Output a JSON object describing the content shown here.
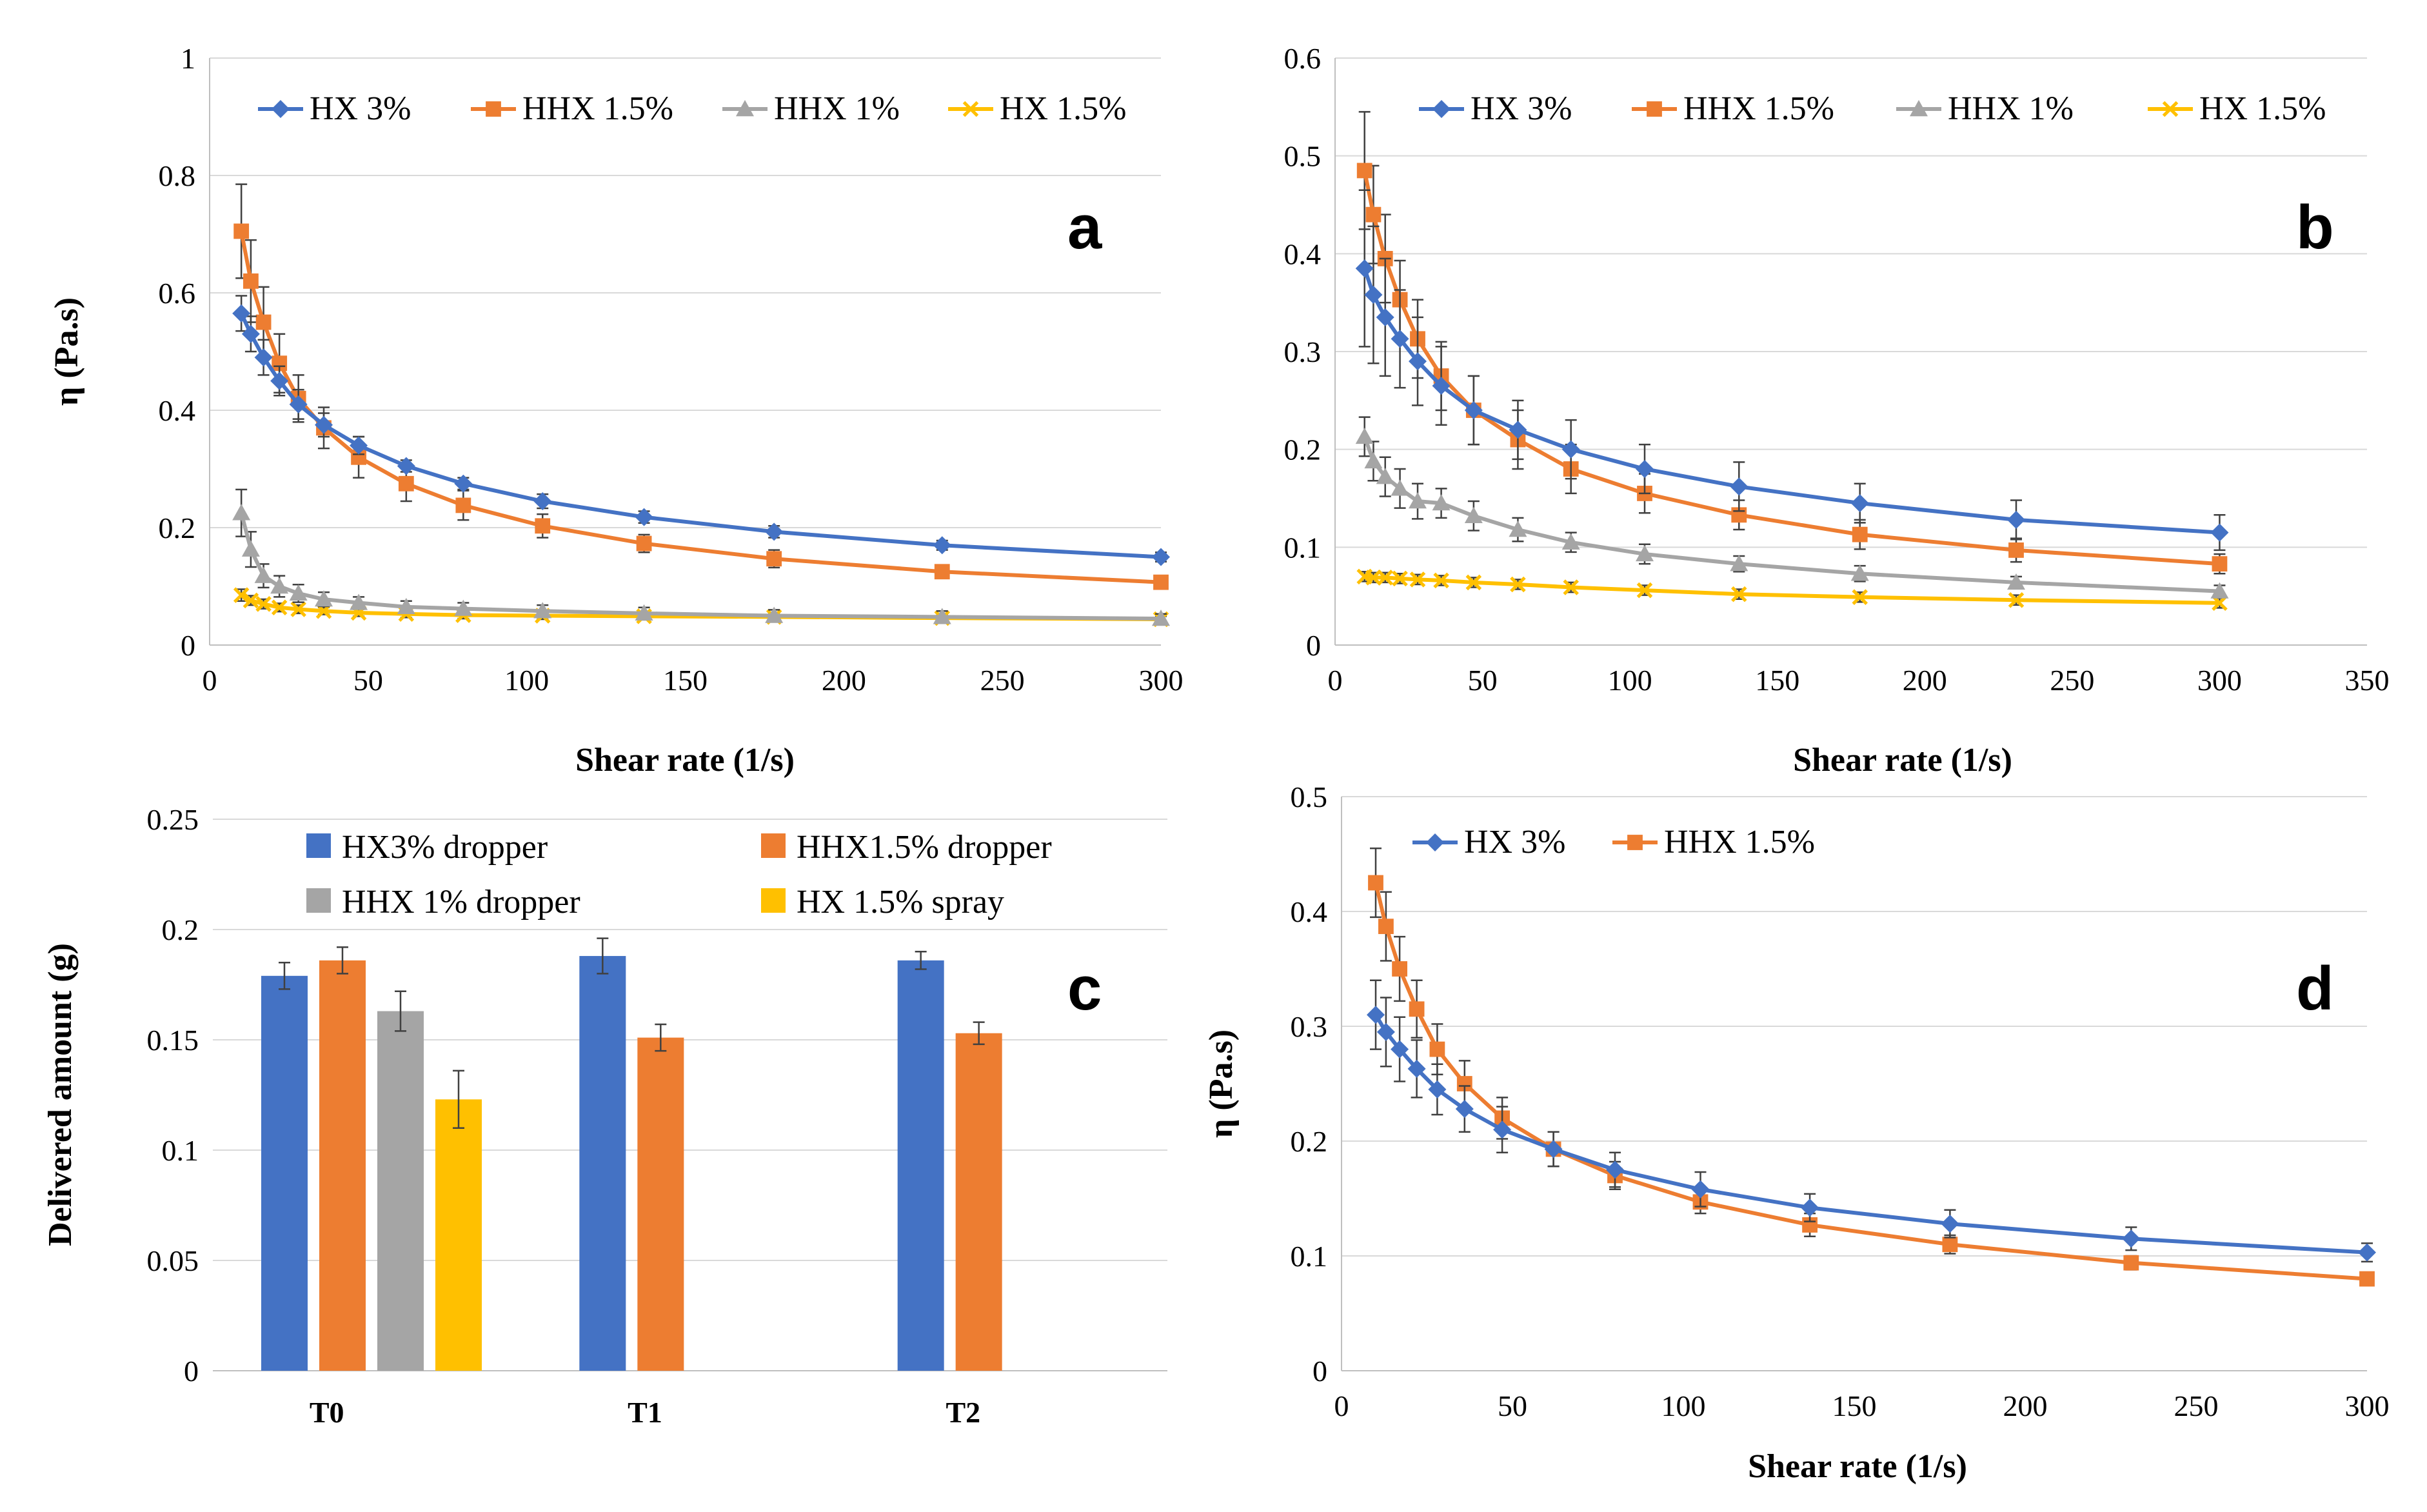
{
  "chart_data": [
    {
      "panel": "a",
      "type": "line",
      "xlabel": "Shear rate (1/s)",
      "ylabel": "η (Pa.s)",
      "xlim": [
        0,
        300
      ],
      "ylim": [
        0,
        1
      ],
      "xticks": [
        "0",
        "50",
        "100",
        "150",
        "200",
        "250",
        "300"
      ],
      "yticks": [
        "0",
        "0.2",
        "0.4",
        "0.6",
        "0.8",
        "1"
      ],
      "x": [
        10,
        13,
        17,
        22,
        28,
        36,
        47,
        62,
        80,
        105,
        137,
        178,
        231,
        300
      ],
      "series": [
        {
          "name": "HX 3%",
          "color": "#4472c4",
          "marker": "diamond",
          "values": [
            0.565,
            0.53,
            0.49,
            0.45,
            0.41,
            0.375,
            0.34,
            0.305,
            0.275,
            0.245,
            0.218,
            0.193,
            0.17,
            0.15
          ],
          "errors": [
            0.03,
            0.03,
            0.03,
            0.025,
            0.025,
            0.02,
            0.015,
            0.01,
            0.01,
            0.012,
            0.01,
            0.01,
            0.008,
            0.008
          ]
        },
        {
          "name": "HHX 1.5%",
          "color": "#ed7d31",
          "marker": "square",
          "values": [
            0.705,
            0.62,
            0.55,
            0.48,
            0.42,
            0.37,
            0.32,
            0.275,
            0.238,
            0.203,
            0.173,
            0.147,
            0.125,
            0.107
          ],
          "errors": [
            0.08,
            0.07,
            0.06,
            0.05,
            0.04,
            0.035,
            0.035,
            0.03,
            0.025,
            0.02,
            0.015,
            0.015,
            0.01,
            0.008
          ]
        },
        {
          "name": "HHX 1%",
          "color": "#a5a5a5",
          "marker": "triangle",
          "values": [
            0.225,
            0.163,
            0.118,
            0.1,
            0.088,
            0.078,
            0.072,
            0.065,
            0.062,
            0.058,
            0.054,
            0.05,
            0.048,
            0.045
          ],
          "errors": [
            0.04,
            0.03,
            0.02,
            0.018,
            0.015,
            0.012,
            0.01,
            0.01,
            0.01,
            0.01,
            0.01,
            0.01,
            0.01,
            0.008
          ]
        },
        {
          "name": "HX 1.5%",
          "color": "#ffc000",
          "marker": "x",
          "values": [
            0.085,
            0.076,
            0.07,
            0.064,
            0.061,
            0.058,
            0.055,
            0.053,
            0.051,
            0.05,
            0.049,
            0.048,
            0.046,
            0.044
          ],
          "errors": [
            0.01,
            0.008,
            0.008,
            0.007,
            0.007,
            0.006,
            0.006,
            0.006,
            0.006,
            0.006,
            0.006,
            0.006,
            0.005,
            0.005
          ]
        }
      ],
      "legend": [
        "HX 3%",
        "HHX 1.5%",
        "HHX 1%",
        "HX 1.5%"
      ]
    },
    {
      "panel": "b",
      "type": "line",
      "xlabel": "Shear rate (1/s)",
      "ylabel": "",
      "xlim": [
        0,
        350
      ],
      "ylim": [
        0,
        0.6
      ],
      "xticks": [
        "0",
        "50",
        "100",
        "150",
        "200",
        "250",
        "300",
        "350"
      ],
      "yticks": [
        "0",
        "0.1",
        "0.2",
        "0.3",
        "0.4",
        "0.5",
        "0.6"
      ],
      "x": [
        10,
        13,
        17,
        22,
        28,
        36,
        47,
        62,
        80,
        105,
        137,
        178,
        231,
        300
      ],
      "series": [
        {
          "name": "HX 3%",
          "color": "#4472c4",
          "marker": "diamond",
          "values": [
            0.385,
            0.358,
            0.335,
            0.313,
            0.29,
            0.265,
            0.24,
            0.22,
            0.2,
            0.18,
            0.162,
            0.145,
            0.128,
            0.115
          ],
          "errors": [
            0.08,
            0.07,
            0.06,
            0.05,
            0.045,
            0.04,
            0.035,
            0.03,
            0.03,
            0.025,
            0.025,
            0.02,
            0.02,
            0.018
          ]
        },
        {
          "name": "HHX 1.5%",
          "color": "#ed7d31",
          "marker": "square",
          "values": [
            0.485,
            0.44,
            0.395,
            0.353,
            0.313,
            0.275,
            0.24,
            0.21,
            0.18,
            0.155,
            0.133,
            0.113,
            0.097,
            0.083
          ],
          "errors": [
            0.06,
            0.05,
            0.045,
            0.04,
            0.04,
            0.035,
            0.035,
            0.03,
            0.025,
            0.02,
            0.015,
            0.015,
            0.012,
            0.01
          ]
        },
        {
          "name": "HHX 1%",
          "color": "#a5a5a5",
          "marker": "triangle",
          "values": [
            0.213,
            0.188,
            0.172,
            0.16,
            0.147,
            0.145,
            0.132,
            0.118,
            0.105,
            0.093,
            0.083,
            0.073,
            0.064,
            0.055
          ],
          "errors": [
            0.02,
            0.02,
            0.02,
            0.02,
            0.018,
            0.015,
            0.015,
            0.012,
            0.01,
            0.01,
            0.008,
            0.008,
            0.006,
            0.006
          ]
        },
        {
          "name": "HX 1.5%",
          "color": "#ffc000",
          "marker": "x",
          "values": [
            0.07,
            0.069,
            0.069,
            0.068,
            0.067,
            0.066,
            0.064,
            0.062,
            0.059,
            0.056,
            0.052,
            0.049,
            0.046,
            0.043
          ],
          "errors": [
            0.005,
            0.005,
            0.005,
            0.005,
            0.005,
            0.005,
            0.005,
            0.005,
            0.005,
            0.005,
            0.005,
            0.005,
            0.005,
            0.005
          ]
        }
      ],
      "legend": [
        "HX 3%",
        "HHX 1.5%",
        "HHX 1%",
        "HX 1.5%"
      ]
    },
    {
      "panel": "c",
      "type": "bar",
      "xlabel": "",
      "ylabel": "Delivered amount (g)",
      "ylim": [
        0,
        0.25
      ],
      "yticks": [
        "0",
        "0.05",
        "0.1",
        "0.15",
        "0.2",
        "0.25"
      ],
      "categories": [
        "T0",
        "T1",
        "T2"
      ],
      "series": [
        {
          "name": "HX3% dropper",
          "color": "#4472c4",
          "values": [
            0.179,
            0.188,
            0.186
          ],
          "errors": [
            0.006,
            0.008,
            0.004
          ]
        },
        {
          "name": "HHX1.5% dropper",
          "color": "#ed7d31",
          "values": [
            0.186,
            0.151,
            0.153
          ],
          "errors": [
            0.006,
            0.006,
            0.005
          ]
        },
        {
          "name": "HHX 1% dropper",
          "color": "#a5a5a5",
          "values": [
            0.163,
            null,
            null
          ],
          "errors": [
            0.009,
            null,
            null
          ]
        },
        {
          "name": "HX 1.5% spray",
          "color": "#ffc000",
          "values": [
            0.123,
            null,
            null
          ],
          "errors": [
            0.013,
            null,
            null
          ]
        }
      ],
      "legend": [
        "HX3% dropper",
        "HHX1.5% dropper",
        "HHX 1% dropper",
        "HX 1.5% spray"
      ]
    },
    {
      "panel": "d",
      "type": "line",
      "xlabel": "Shear rate (1/s)",
      "ylabel": "η (Pa.s)",
      "xlim": [
        0,
        300
      ],
      "ylim": [
        0,
        0.5
      ],
      "xticks": [
        "0",
        "50",
        "100",
        "150",
        "200",
        "250",
        "300"
      ],
      "yticks": [
        "0",
        "0.1",
        "0.2",
        "0.3",
        "0.4",
        "0.5"
      ],
      "x": [
        10,
        13,
        17,
        22,
        28,
        36,
        47,
        62,
        80,
        105,
        137,
        178,
        231,
        300
      ],
      "series": [
        {
          "name": "HX 3%",
          "color": "#4472c4",
          "marker": "diamond",
          "values": [
            0.31,
            0.295,
            0.28,
            0.263,
            0.245,
            0.228,
            0.21,
            0.193,
            0.175,
            0.158,
            0.142,
            0.128,
            0.115,
            0.103
          ],
          "errors": [
            0.03,
            0.03,
            0.028,
            0.025,
            0.022,
            0.02,
            0.02,
            0.015,
            0.015,
            0.015,
            0.012,
            0.012,
            0.01,
            0.008
          ]
        },
        {
          "name": "HHX 1.5%",
          "color": "#ed7d31",
          "marker": "square",
          "values": [
            0.425,
            0.387,
            0.35,
            0.315,
            0.28,
            0.25,
            0.22,
            0.193,
            0.17,
            0.147,
            0.127,
            0.11,
            0.094,
            0.08
          ],
          "errors": [
            0.03,
            0.03,
            0.028,
            0.025,
            0.022,
            0.02,
            0.018,
            0.015,
            0.012,
            0.01,
            0.01,
            0.008,
            0.006,
            0.005
          ]
        }
      ],
      "legend": [
        "HX 3%",
        "HHX 1.5%"
      ]
    }
  ]
}
